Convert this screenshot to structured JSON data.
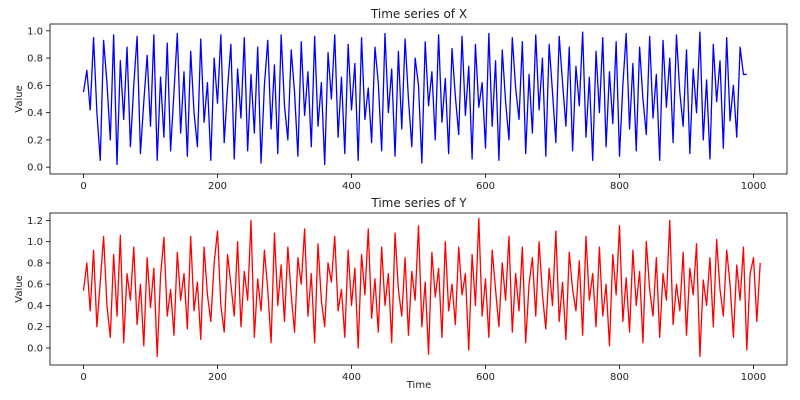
{
  "chart_data": [
    {
      "type": "line",
      "title": "Time series of X",
      "xlabel": "",
      "ylabel": "Value",
      "xlim": [
        -50,
        1050
      ],
      "ylim": [
        -0.05,
        1.05
      ],
      "xticks": [
        0,
        200,
        400,
        600,
        800,
        1000
      ],
      "yticks": [
        0.0,
        0.2,
        0.4,
        0.6,
        0.8,
        1.0
      ],
      "xtick_labels": [
        "0",
        "200",
        "400",
        "600",
        "800",
        "1000"
      ],
      "ytick_labels": [
        "0.0",
        "0.2",
        "0.4",
        "0.6",
        "0.8",
        "1.0"
      ],
      "grid": false,
      "series": [
        {
          "color": "#0000ff",
          "x_start": 0,
          "x_step": 5,
          "values": [
            0.55,
            0.71,
            0.42,
            0.95,
            0.4,
            0.05,
            0.93,
            0.62,
            0.2,
            0.97,
            0.02,
            0.78,
            0.35,
            0.88,
            0.15,
            0.6,
            0.96,
            0.1,
            0.48,
            0.82,
            0.3,
            0.97,
            0.05,
            0.66,
            0.22,
            0.91,
            0.12,
            0.55,
            0.98,
            0.25,
            0.7,
            0.08,
            0.85,
            0.4,
            0.15,
            0.94,
            0.33,
            0.62,
            0.05,
            0.8,
            0.47,
            0.97,
            0.18,
            0.58,
            0.9,
            0.06,
            0.72,
            0.36,
            0.95,
            0.12,
            0.68,
            0.25,
            0.88,
            0.03,
            0.6,
            0.93,
            0.28,
            0.75,
            0.1,
            0.97,
            0.45,
            0.2,
            0.86,
            0.55,
            0.08,
            0.92,
            0.38,
            0.7,
            0.15,
            0.96,
            0.3,
            0.62,
            0.02,
            0.84,
            0.5,
            0.97,
            0.22,
            0.66,
            0.1,
            0.9,
            0.42,
            0.76,
            0.05,
            0.95,
            0.35,
            0.58,
            0.18,
            0.88,
            0.62,
            0.12,
            0.98,
            0.4,
            0.72,
            0.08,
            0.85,
            0.28,
            0.94,
            0.5,
            0.15,
            0.8,
            0.6,
            0.03,
            0.92,
            0.45,
            0.7,
            0.2,
            0.97,
            0.33,
            0.65,
            0.1,
            0.87,
            0.52,
            0.24,
            0.96,
            0.38,
            0.74,
            0.06,
            0.9,
            0.44,
            0.62,
            0.14,
            0.98,
            0.3,
            0.78,
            0.05,
            0.86,
            0.48,
            0.2,
            0.95,
            0.58,
            0.35,
            0.92,
            0.1,
            0.68,
            0.25,
            0.97,
            0.42,
            0.8,
            0.08,
            0.9,
            0.55,
            0.18,
            0.96,
            0.62,
            0.3,
            0.88,
            0.12,
            0.74,
            0.45,
            0.99,
            0.22,
            0.66,
            0.05,
            0.85,
            0.4,
            0.95,
            0.15,
            0.7,
            0.32,
            0.92,
            0.08,
            0.6,
            0.98,
            0.28,
            0.76,
            0.12,
            0.88,
            0.5,
            0.24,
            0.96,
            0.36,
            0.68,
            0.05,
            0.93,
            0.44,
            0.8,
            0.18,
            0.97,
            0.55,
            0.3,
            0.86,
            0.1,
            0.72,
            0.4,
            0.99,
            0.2,
            0.64,
            0.06,
            0.9,
            0.48,
            0.78,
            0.14,
            0.95,
            0.34,
            0.6,
            0.22,
            0.88,
            0.68,
            0.68
          ]
        }
      ]
    },
    {
      "type": "line",
      "title": "Time series of Y",
      "xlabel": "Time",
      "ylabel": "Value",
      "xlim": [
        -50,
        1050
      ],
      "ylim": [
        -0.16,
        1.27
      ],
      "xticks": [
        0,
        200,
        400,
        600,
        800,
        1000
      ],
      "yticks": [
        0.0,
        0.2,
        0.4,
        0.6,
        0.8,
        1.0,
        1.2
      ],
      "xtick_labels": [
        "0",
        "200",
        "400",
        "600",
        "800",
        "1000"
      ],
      "ytick_labels": [
        "0.0",
        "0.2",
        "0.4",
        "0.6",
        "0.8",
        "1.0",
        "1.2"
      ],
      "grid": false,
      "series": [
        {
          "color": "#ff0000",
          "x_start": 0,
          "x_step": 5,
          "values": [
            0.54,
            0.8,
            0.35,
            0.92,
            0.2,
            0.62,
            1.05,
            0.4,
            0.1,
            0.88,
            0.3,
            1.06,
            0.05,
            0.7,
            0.45,
            0.95,
            0.22,
            0.6,
            0.02,
            0.85,
            0.38,
            0.75,
            -0.08,
            0.68,
            1.04,
            0.3,
            0.55,
            0.12,
            0.9,
            0.45,
            0.7,
            0.18,
            1.05,
            0.35,
            0.62,
            0.08,
            0.95,
            0.5,
            0.25,
            0.8,
            1.1,
            0.4,
            0.15,
            0.88,
            0.6,
            0.3,
            1.0,
            0.2,
            0.72,
            0.45,
            1.2,
            0.1,
            0.65,
            0.35,
            0.92,
            0.55,
            0.05,
            1.08,
            0.4,
            0.78,
            0.25,
            0.95,
            0.5,
            0.15,
            0.85,
            0.6,
            1.12,
            0.3,
            0.7,
            0.05,
            0.98,
            0.45,
            0.2,
            0.8,
            0.62,
            1.05,
            0.35,
            0.55,
            0.1,
            0.92,
            0.4,
            0.75,
            0.0,
            0.88,
            0.5,
            1.12,
            0.28,
            0.65,
            0.15,
            0.95,
            0.4,
            0.7,
            0.05,
            1.08,
            0.55,
            0.3,
            0.85,
            0.12,
            0.72,
            0.45,
            1.15,
            0.2,
            0.62,
            -0.06,
            0.9,
            0.48,
            0.75,
            0.1,
            1.0,
            0.35,
            0.6,
            0.22,
            0.95,
            0.5,
            0.7,
            -0.02,
            0.88,
            0.4,
            1.22,
            0.3,
            0.65,
            0.1,
            0.92,
            0.55,
            0.2,
            0.8,
            0.45,
            1.05,
            0.15,
            0.7,
            0.35,
            0.95,
            0.05,
            0.6,
            0.85,
            0.3,
            1.0,
            0.5,
            0.18,
            0.75,
            0.4,
            1.1,
            0.25,
            0.62,
            0.08,
            0.9,
            0.55,
            0.35,
            0.82,
            0.12,
            1.05,
            0.45,
            0.7,
            0.2,
            0.95,
            0.3,
            0.6,
            0.02,
            0.88,
            0.5,
            1.15,
            0.25,
            0.66,
            0.15,
            0.92,
            0.4,
            0.72,
            0.05,
            1.0,
            0.55,
            0.3,
            0.85,
            0.1,
            0.7,
            0.45,
            1.2,
            0.22,
            0.6,
            0.35,
            0.9,
            0.12,
            0.75,
            0.5,
            0.98,
            -0.08,
            0.64,
            0.4,
            0.85,
            0.2,
            1.02,
            0.55,
            0.3,
            0.92,
            0.6,
            0.1,
            0.78,
            0.45,
            0.95,
            -0.02,
            0.7,
            0.85,
            0.25,
            0.8
          ]
        }
      ]
    }
  ]
}
